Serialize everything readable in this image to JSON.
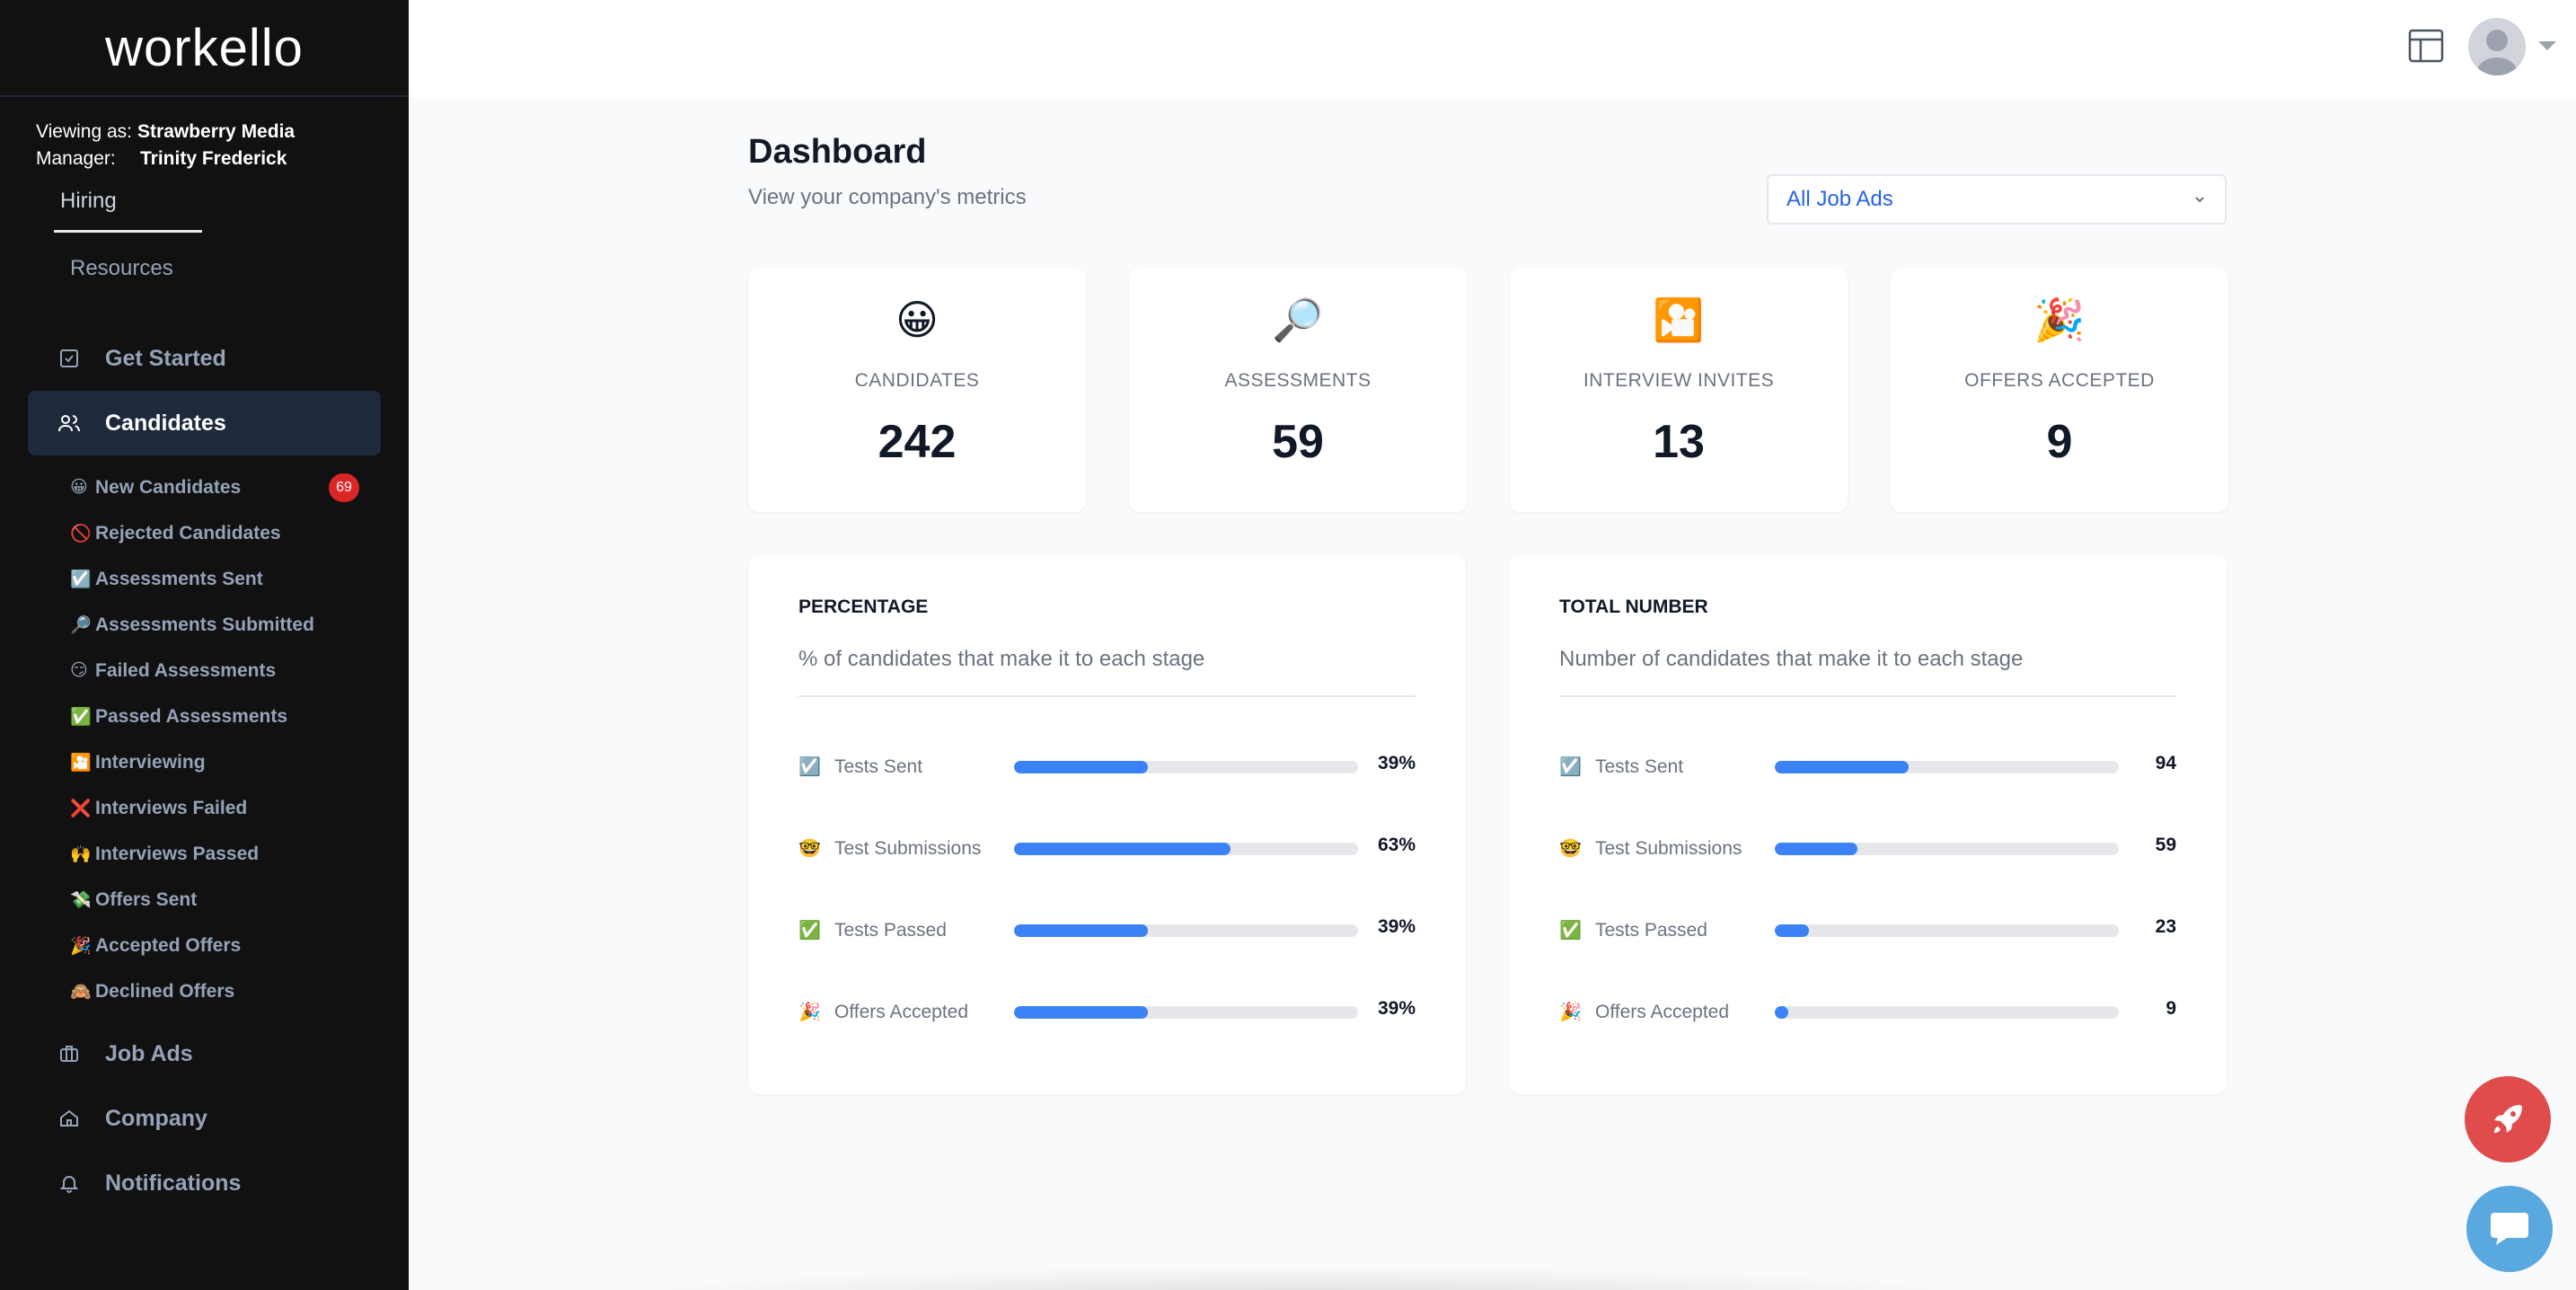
{
  "app": {
    "logo": "workello"
  },
  "account": {
    "viewing_label": "Viewing as:",
    "viewing_value": "Strawberry Media",
    "manager_label": "Manager:",
    "manager_value": "Trinity Frederick"
  },
  "sub_tabs": {
    "hiring": "Hiring",
    "resources": "Resources"
  },
  "nav": {
    "get_started": "Get Started",
    "candidates": "Candidates",
    "job_ads": "Job Ads",
    "company": "Company",
    "notifications": "Notifications"
  },
  "candidate_items": [
    {
      "emoji": "😀",
      "label": "New Candidates",
      "badge": "69"
    },
    {
      "emoji": "🚫",
      "label": "Rejected Candidates"
    },
    {
      "emoji": "☑️",
      "label": "Assessments Sent"
    },
    {
      "emoji": "🔎",
      "label": "Assessments Submitted"
    },
    {
      "emoji": "😏",
      "label": "Failed Assessments"
    },
    {
      "emoji": "✅",
      "label": "Passed Assessments"
    },
    {
      "emoji": "🎦",
      "label": "Interviewing"
    },
    {
      "emoji": "❌",
      "label": "Interviews Failed"
    },
    {
      "emoji": "🙌",
      "label": "Interviews Passed"
    },
    {
      "emoji": "💸",
      "label": "Offers Sent"
    },
    {
      "emoji": "🎉",
      "label": "Accepted Offers"
    },
    {
      "emoji": "🙈",
      "label": "Declined Offers"
    }
  ],
  "page": {
    "title": "Dashboard",
    "subtitle": "View your company's metrics",
    "filter_value": "All Job Ads"
  },
  "stats": [
    {
      "emoji": "😀",
      "label": "CANDIDATES",
      "value": "242"
    },
    {
      "emoji": "🔎",
      "label": "ASSESSMENTS",
      "value": "59"
    },
    {
      "emoji": "🎦",
      "label": "INTERVIEW INVITES",
      "value": "13"
    },
    {
      "emoji": "🎉",
      "label": "OFFERS ACCEPTED",
      "value": "9"
    }
  ],
  "percentage_panel": {
    "title": "PERCENTAGE",
    "description": "% of candidates that make it to each stage",
    "rows": [
      {
        "emoji": "☑️",
        "label": "Tests Sent",
        "value": "39%",
        "fill": 0.39
      },
      {
        "emoji": "🤓",
        "label": "Test Submissions",
        "value": "63%",
        "fill": 0.63
      },
      {
        "emoji": "✅",
        "label": "Tests Passed",
        "value": "39%",
        "fill": 0.39
      },
      {
        "emoji": "🎉",
        "label": "Offers Accepted",
        "value": "39%",
        "fill": 0.39
      }
    ]
  },
  "total_panel": {
    "title": "TOTAL NUMBER",
    "description": "Number of candidates that make it to each stage",
    "rows": [
      {
        "emoji": "☑️",
        "label": "Tests Sent",
        "value": "94",
        "fill": 0.39
      },
      {
        "emoji": "🤓",
        "label": "Test Submissions",
        "value": "59",
        "fill": 0.24
      },
      {
        "emoji": "✅",
        "label": "Tests Passed",
        "value": "23",
        "fill": 0.1
      },
      {
        "emoji": "🎉",
        "label": "Offers Accepted",
        "value": "9",
        "fill": 0.04
      }
    ]
  },
  "colors": {
    "accent": "#3b82f6",
    "sidebar": "#111111",
    "badge": "#dc2626",
    "rocket": "#e04b4b",
    "chat": "#5aa8e0"
  }
}
